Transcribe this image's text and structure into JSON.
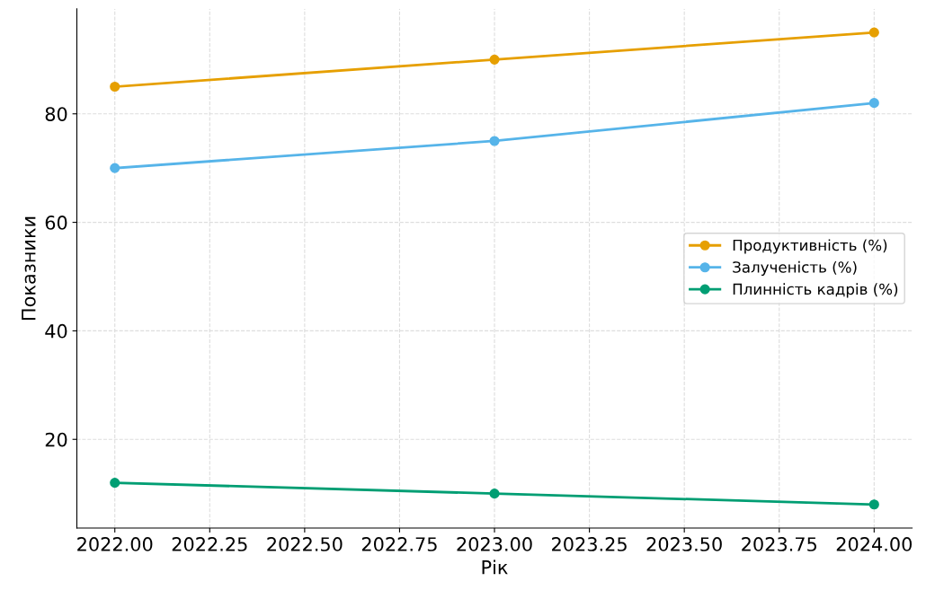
{
  "chart_data": {
    "type": "line",
    "xlabel": "Рік",
    "ylabel": "Показники",
    "x": [
      2022,
      2023,
      2024
    ],
    "series": [
      {
        "name": "Продуктивність (%)",
        "color": "#e69f00",
        "values": [
          85,
          90,
          95
        ]
      },
      {
        "name": "Залученість (%)",
        "color": "#56b4e9",
        "values": [
          70,
          75,
          82
        ]
      },
      {
        "name": "Плинність кадрів (%)",
        "color": "#009e73",
        "values": [
          12,
          10,
          8
        ]
      }
    ],
    "xlim": [
      2021.9,
      2024.1
    ],
    "ylim": [
      3.65,
      99.35
    ],
    "xticks": [
      {
        "value": 2022,
        "label": "2022.00"
      },
      {
        "value": 2022.25,
        "label": "2022.25"
      },
      {
        "value": 2022.5,
        "label": "2022.50"
      },
      {
        "value": 2022.75,
        "label": "2022.75"
      },
      {
        "value": 2023,
        "label": "2023.00"
      },
      {
        "value": 2023.25,
        "label": "2023.25"
      },
      {
        "value": 2023.5,
        "label": "2023.50"
      },
      {
        "value": 2023.75,
        "label": "2023.75"
      },
      {
        "value": 2024,
        "label": "2024.00"
      }
    ],
    "yticks": [
      20,
      40,
      60,
      80
    ],
    "grid": true,
    "legend": "center right",
    "marker": "circle",
    "line_style": "solid"
  }
}
